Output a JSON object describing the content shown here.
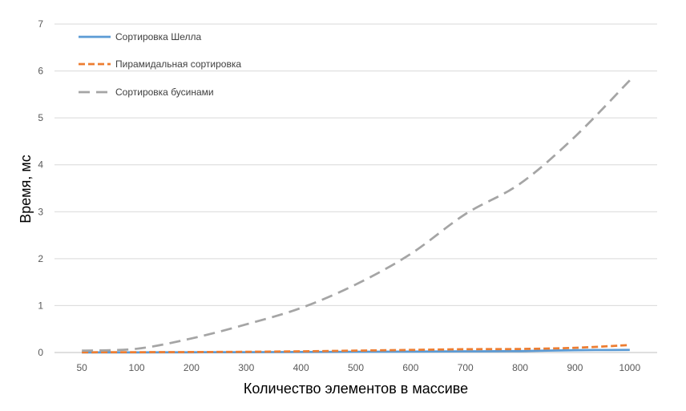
{
  "chart_data": {
    "type": "line",
    "title": "",
    "xlabel": "Количество элементов в массиве",
    "ylabel": "Время, мс",
    "categories": [
      "50",
      "100",
      "200",
      "300",
      "400",
      "500",
      "600",
      "700",
      "800",
      "900",
      "1000"
    ],
    "ylim": [
      0,
      7
    ],
    "yticks": [
      "0",
      "1",
      "2",
      "3",
      "4",
      "5",
      "6",
      "7"
    ],
    "grid": true,
    "legend": "top-left",
    "series": [
      {
        "name": "Сортировка Шелла",
        "color": "#5B9BD5",
        "dash": "solid",
        "values": [
          0.002,
          0.003,
          0.005,
          0.007,
          0.01,
          0.015,
          0.02,
          0.025,
          0.03,
          0.05,
          0.055
        ]
      },
      {
        "name": "Пирамидальная сортировка",
        "color": "#ED7D31",
        "dash": "short-dash",
        "values": [
          0.005,
          0.007,
          0.01,
          0.015,
          0.025,
          0.04,
          0.055,
          0.07,
          0.075,
          0.1,
          0.16
        ]
      },
      {
        "name": "Сортировка бусинами",
        "color": "#A5A5A5",
        "dash": "long-dash",
        "values": [
          0.04,
          0.08,
          0.3,
          0.6,
          0.95,
          1.45,
          2.1,
          2.95,
          3.6,
          4.6,
          5.8
        ]
      }
    ]
  }
}
